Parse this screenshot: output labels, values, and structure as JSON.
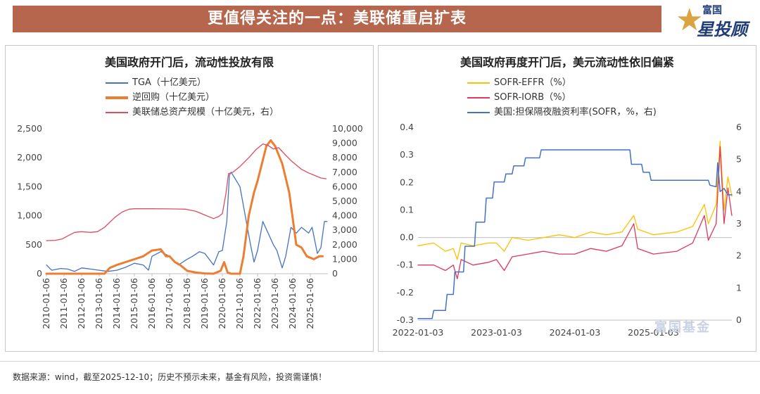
{
  "header": {
    "title": "更值得关注的一点：美联储重启扩表"
  },
  "logo": {
    "line1": "富国",
    "line2": "星投顾"
  },
  "watermark": {
    "text": "富国基金"
  },
  "footnote": "数据来源：wind，截至2025-12-10；历史不预示未来，基金有风险，投资需谨慎！",
  "colors": {
    "banner": "#b5664c",
    "blue": "#4472c4",
    "orange": "#ed7d31",
    "red": "#e04b5e",
    "gold": "#ffc000",
    "crimson": "#e0375a"
  },
  "chart_data": [
    {
      "type": "line",
      "title": "美国政府开门后，流动性投放有限",
      "legend": [
        "TGA（十亿美元）",
        "逆回购（十亿美元）",
        "美联储总资产规模（十亿美元，右）"
      ],
      "y_left": {
        "min": 0,
        "max": 2500,
        "ticks": [
          "0",
          "500",
          "1,000",
          "1,500",
          "2,000",
          "2,500"
        ]
      },
      "y_right": {
        "min": 0,
        "max": 10000,
        "ticks": [
          "0",
          "1,000",
          "2,000",
          "3,000",
          "4,000",
          "5,000",
          "6,000",
          "7,000",
          "8,000",
          "9,000",
          "10,000"
        ]
      },
      "x_labels": [
        "2010-01-06",
        "2011-01-06",
        "2012-01-06",
        "2013-01-06",
        "2014-01-06",
        "2015-01-06",
        "2016-01-06",
        "2017-01-06",
        "2018-01-06",
        "2019-01-06",
        "2020-01-06",
        "2021-01-06",
        "2022-01-06",
        "2023-01-06",
        "2024-01-06",
        "2025-01-06"
      ],
      "x_range": [
        2010.0,
        2026.0
      ],
      "series": [
        {
          "name": "TGA（十亿美元）",
          "axis": "left",
          "color": "#4472c4",
          "width": 1.3,
          "points": [
            [
              2010.0,
              150
            ],
            [
              2010.3,
              60
            ],
            [
              2010.8,
              90
            ],
            [
              2011.2,
              80
            ],
            [
              2011.6,
              40
            ],
            [
              2012.0,
              100
            ],
            [
              2012.5,
              80
            ],
            [
              2013.0,
              60
            ],
            [
              2013.5,
              40
            ],
            [
              2014.0,
              60
            ],
            [
              2014.5,
              110
            ],
            [
              2015.0,
              180
            ],
            [
              2015.5,
              150
            ],
            [
              2015.8,
              60
            ],
            [
              2016.0,
              300
            ],
            [
              2016.5,
              380
            ],
            [
              2017.0,
              300
            ],
            [
              2017.5,
              150
            ],
            [
              2018.0,
              250
            ],
            [
              2018.3,
              300
            ],
            [
              2018.7,
              380
            ],
            [
              2019.0,
              350
            ],
            [
              2019.5,
              150
            ],
            [
              2019.8,
              380
            ],
            [
              2020.0,
              400
            ],
            [
              2020.25,
              900
            ],
            [
              2020.4,
              1700
            ],
            [
              2020.5,
              1750
            ],
            [
              2020.7,
              1650
            ],
            [
              2021.0,
              1500
            ],
            [
              2021.3,
              1000
            ],
            [
              2021.6,
              500
            ],
            [
              2021.8,
              200
            ],
            [
              2022.0,
              400
            ],
            [
              2022.3,
              900
            ],
            [
              2022.6,
              700
            ],
            [
              2022.9,
              500
            ],
            [
              2023.1,
              400
            ],
            [
              2023.4,
              100
            ],
            [
              2023.6,
              300
            ],
            [
              2023.9,
              800
            ],
            [
              2024.2,
              700
            ],
            [
              2024.5,
              800
            ],
            [
              2024.9,
              700
            ],
            [
              2025.1,
              800
            ],
            [
              2025.4,
              350
            ],
            [
              2025.6,
              450
            ],
            [
              2025.8,
              900
            ],
            [
              2025.95,
              900
            ]
          ]
        },
        {
          "name": "逆回购（十亿美元）",
          "axis": "left",
          "color": "#ed7d31",
          "width": 3,
          "points": [
            [
              2010.0,
              0
            ],
            [
              2013.3,
              0
            ],
            [
              2013.6,
              100
            ],
            [
              2014.0,
              150
            ],
            [
              2014.5,
              200
            ],
            [
              2015.0,
              250
            ],
            [
              2015.5,
              300
            ],
            [
              2016.0,
              400
            ],
            [
              2016.5,
              420
            ],
            [
              2016.8,
              300
            ],
            [
              2017.0,
              300
            ],
            [
              2017.3,
              200
            ],
            [
              2017.6,
              150
            ],
            [
              2018.0,
              50
            ],
            [
              2018.5,
              20
            ],
            [
              2019.0,
              5
            ],
            [
              2019.5,
              0
            ],
            [
              2019.9,
              50
            ],
            [
              2020.1,
              200
            ],
            [
              2020.3,
              20
            ],
            [
              2020.5,
              0
            ],
            [
              2021.0,
              0
            ],
            [
              2021.2,
              300
            ],
            [
              2021.5,
              1000
            ],
            [
              2021.8,
              1400
            ],
            [
              2022.0,
              1600
            ],
            [
              2022.5,
              2200
            ],
            [
              2022.75,
              2300
            ],
            [
              2023.0,
              2200
            ],
            [
              2023.4,
              1900
            ],
            [
              2023.8,
              1400
            ],
            [
              2024.2,
              500
            ],
            [
              2024.5,
              450
            ],
            [
              2024.8,
              300
            ],
            [
              2025.2,
              250
            ],
            [
              2025.5,
              300
            ],
            [
              2025.7,
              300
            ]
          ]
        },
        {
          "name": "美联储总资产规模（十亿美元，右）",
          "axis": "right",
          "color": "#e04b5e",
          "width": 1.3,
          "points": [
            [
              2010.0,
              2280
            ],
            [
              2010.5,
              2300
            ],
            [
              2010.9,
              2400
            ],
            [
              2011.2,
              2600
            ],
            [
              2011.6,
              2850
            ],
            [
              2012.0,
              2900
            ],
            [
              2012.5,
              2850
            ],
            [
              2012.9,
              2900
            ],
            [
              2013.3,
              3200
            ],
            [
              2013.6,
              3550
            ],
            [
              2013.9,
              3900
            ],
            [
              2014.3,
              4250
            ],
            [
              2014.7,
              4450
            ],
            [
              2015.0,
              4480
            ],
            [
              2016.0,
              4480
            ],
            [
              2017.0,
              4470
            ],
            [
              2017.9,
              4450
            ],
            [
              2018.5,
              4300
            ],
            [
              2019.0,
              4050
            ],
            [
              2019.5,
              3800
            ],
            [
              2019.8,
              3950
            ],
            [
              2020.0,
              4150
            ],
            [
              2020.2,
              5500
            ],
            [
              2020.35,
              6900
            ],
            [
              2020.6,
              7000
            ],
            [
              2021.0,
              7400
            ],
            [
              2021.5,
              8000
            ],
            [
              2021.9,
              8550
            ],
            [
              2022.3,
              8950
            ],
            [
              2022.6,
              8850
            ],
            [
              2022.9,
              8600
            ],
            [
              2023.2,
              8700
            ],
            [
              2023.5,
              8300
            ],
            [
              2023.9,
              7800
            ],
            [
              2024.2,
              7500
            ],
            [
              2024.5,
              7200
            ],
            [
              2024.9,
              6950
            ],
            [
              2025.3,
              6750
            ],
            [
              2025.6,
              6600
            ],
            [
              2025.9,
              6550
            ]
          ]
        }
      ]
    },
    {
      "type": "line",
      "title": "美国政府再度开门后，美元流动性依旧偏紧",
      "legend": [
        "SOFR-EFFR（%）",
        "SOFR-IORB（%）",
        "美国:担保隔夜融资利率(SOFR，%，右)"
      ],
      "y_left": {
        "min": -0.3,
        "max": 0.4,
        "ticks": [
          "-0.3",
          "-0.2",
          "-0.1",
          "0.0",
          "0.1",
          "0.2",
          "0.3",
          "0.4"
        ]
      },
      "y_right": {
        "min": 0,
        "max": 6,
        "ticks": [
          "0",
          "1",
          "2",
          "3",
          "4",
          "5",
          "6"
        ]
      },
      "x_labels": [
        "2022-01-03",
        "2023-01-03",
        "2024-01-03",
        "2025-01-03"
      ],
      "x_range": [
        2022.0,
        2026.0
      ],
      "series": [
        {
          "name": "SOFR-EFFR（%）",
          "axis": "left",
          "color": "#ffc000",
          "width": 1.3,
          "points": [
            [
              2022.0,
              -0.03
            ],
            [
              2022.2,
              -0.02
            ],
            [
              2022.35,
              -0.05
            ],
            [
              2022.45,
              -0.04
            ],
            [
              2022.5,
              -0.08
            ],
            [
              2022.55,
              -0.02
            ],
            [
              2022.7,
              -0.03
            ],
            [
              2022.9,
              -0.02
            ],
            [
              2023.0,
              -0.02
            ],
            [
              2023.1,
              -0.05
            ],
            [
              2023.2,
              0.0
            ],
            [
              2023.4,
              -0.01
            ],
            [
              2023.6,
              0.0
            ],
            [
              2023.8,
              0.01
            ],
            [
              2024.0,
              0.0
            ],
            [
              2024.2,
              0.02
            ],
            [
              2024.4,
              0.01
            ],
            [
              2024.6,
              0.02
            ],
            [
              2024.75,
              0.08
            ],
            [
              2024.8,
              0.03
            ],
            [
              2025.0,
              0.01
            ],
            [
              2025.3,
              0.02
            ],
            [
              2025.5,
              0.04
            ],
            [
              2025.65,
              0.12
            ],
            [
              2025.7,
              0.05
            ],
            [
              2025.8,
              0.12
            ],
            [
              2025.85,
              0.35
            ],
            [
              2025.9,
              0.1
            ],
            [
              2025.95,
              0.22
            ],
            [
              2026.0,
              0.15
            ]
          ]
        },
        {
          "name": "SOFR-IORB（%）",
          "axis": "left",
          "color": "#e0375a",
          "width": 1.3,
          "points": [
            [
              2022.0,
              -0.1
            ],
            [
              2022.2,
              -0.1
            ],
            [
              2022.35,
              -0.12
            ],
            [
              2022.45,
              -0.1
            ],
            [
              2022.5,
              -0.15
            ],
            [
              2022.55,
              -0.08
            ],
            [
              2022.7,
              -0.1
            ],
            [
              2022.9,
              -0.09
            ],
            [
              2023.0,
              -0.08
            ],
            [
              2023.1,
              -0.12
            ],
            [
              2023.2,
              -0.07
            ],
            [
              2023.4,
              -0.06
            ],
            [
              2023.6,
              -0.05
            ],
            [
              2023.8,
              -0.06
            ],
            [
              2024.0,
              -0.06
            ],
            [
              2024.2,
              -0.04
            ],
            [
              2024.4,
              -0.05
            ],
            [
              2024.6,
              -0.03
            ],
            [
              2024.75,
              0.05
            ],
            [
              2024.8,
              -0.04
            ],
            [
              2025.0,
              -0.06
            ],
            [
              2025.3,
              -0.05
            ],
            [
              2025.5,
              -0.02
            ],
            [
              2025.65,
              0.08
            ],
            [
              2025.7,
              -0.01
            ],
            [
              2025.8,
              0.05
            ],
            [
              2025.85,
              0.33
            ],
            [
              2025.9,
              0.05
            ],
            [
              2025.95,
              0.18
            ],
            [
              2026.0,
              0.08
            ]
          ]
        },
        {
          "name": "美国:担保隔夜融资利率(SOFR，%，右)",
          "axis": "right",
          "color": "#4472c4",
          "width": 1.5,
          "points": [
            [
              2022.0,
              0.05
            ],
            [
              2022.18,
              0.05
            ],
            [
              2022.2,
              0.3
            ],
            [
              2022.35,
              0.3
            ],
            [
              2022.37,
              0.8
            ],
            [
              2022.45,
              0.8
            ],
            [
              2022.47,
              1.5
            ],
            [
              2022.58,
              1.5
            ],
            [
              2022.6,
              2.3
            ],
            [
              2022.72,
              2.3
            ],
            [
              2022.74,
              3.05
            ],
            [
              2022.85,
              3.05
            ],
            [
              2022.87,
              3.8
            ],
            [
              2022.95,
              3.8
            ],
            [
              2022.97,
              4.3
            ],
            [
              2023.1,
              4.3
            ],
            [
              2023.12,
              4.55
            ],
            [
              2023.2,
              4.55
            ],
            [
              2023.22,
              4.8
            ],
            [
              2023.35,
              4.8
            ],
            [
              2023.37,
              5.05
            ],
            [
              2023.55,
              5.05
            ],
            [
              2023.57,
              5.3
            ],
            [
              2024.7,
              5.3
            ],
            [
              2024.72,
              4.85
            ],
            [
              2024.85,
              4.85
            ],
            [
              2024.87,
              4.6
            ],
            [
              2024.95,
              4.6
            ],
            [
              2024.97,
              4.35
            ],
            [
              2025.7,
              4.35
            ],
            [
              2025.72,
              4.2
            ],
            [
              2025.8,
              4.15
            ],
            [
              2025.82,
              4.9
            ],
            [
              2025.85,
              4.0
            ],
            [
              2025.9,
              4.1
            ],
            [
              2025.95,
              3.9
            ],
            [
              2026.0,
              3.9
            ]
          ]
        }
      ]
    }
  ]
}
